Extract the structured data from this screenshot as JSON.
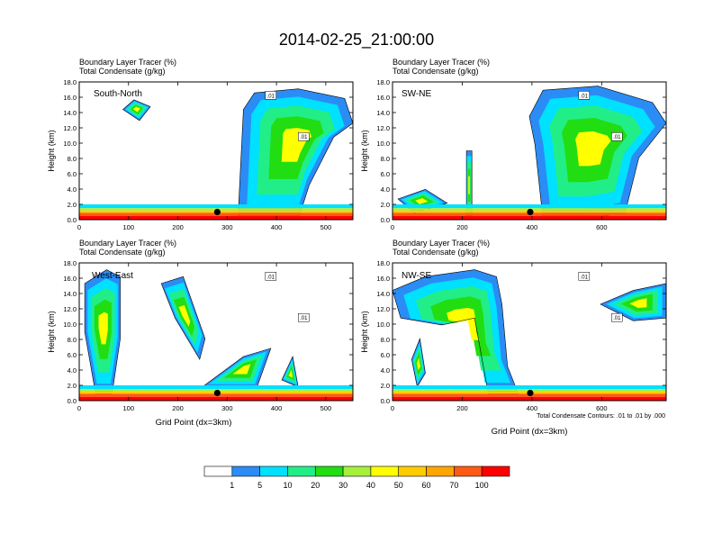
{
  "title": "2014-02-25_21:00:00",
  "panel_header": {
    "line1": "Boundary Layer Tracer    (%)",
    "line2": "Total Condensate    (g/kg)"
  },
  "y_axis_label": "Height (km)",
  "x_axis_label": "Grid Point (dx=3km)",
  "footnote": "Total Condensate Contours: .01 to .01 by .000",
  "contour_label": ".01",
  "chart_data": [
    {
      "type": "heatmap",
      "name": "South-North",
      "x_ticks": [
        0,
        100,
        200,
        300,
        400,
        500
      ],
      "xlim": [
        0,
        555
      ],
      "y_ticks": [
        "0.0",
        "2.0",
        "4.0",
        "6.0",
        "8.0",
        "10.0",
        "12.0",
        "14.0",
        "16.0",
        "18.0"
      ],
      "ylim": [
        0,
        18
      ],
      "marker_x": 280
    },
    {
      "type": "heatmap",
      "name": "SW-NE",
      "x_ticks": [
        0,
        200,
        400,
        600
      ],
      "xlim": [
        0,
        785
      ],
      "y_ticks": [
        "0.0",
        "2.0",
        "4.0",
        "6.0",
        "8.0",
        "10.0",
        "12.0",
        "14.0",
        "16.0",
        "18.0"
      ],
      "ylim": [
        0,
        18
      ],
      "marker_x": 395
    },
    {
      "type": "heatmap",
      "name": "West-East",
      "x_ticks": [
        0,
        100,
        200,
        300,
        400,
        500
      ],
      "xlim": [
        0,
        555
      ],
      "y_ticks": [
        "0.0",
        "2.0",
        "4.0",
        "6.0",
        "8.0",
        "10.0",
        "12.0",
        "14.0",
        "16.0",
        "18.0"
      ],
      "ylim": [
        0,
        18
      ],
      "marker_x": 280
    },
    {
      "type": "heatmap",
      "name": "NW-SE",
      "x_ticks": [
        0,
        200,
        400,
        600
      ],
      "xlim": [
        0,
        785
      ],
      "y_ticks": [
        "0.0",
        "2.0",
        "4.0",
        "6.0",
        "8.0",
        "10.0",
        "12.0",
        "14.0",
        "16.0",
        "18.0"
      ],
      "ylim": [
        0,
        18
      ],
      "marker_x": 395
    }
  ],
  "colorbar": {
    "levels": [
      "1",
      "5",
      "10",
      "20",
      "30",
      "40",
      "50",
      "60",
      "70",
      "100"
    ],
    "colors": [
      "#ffffff",
      "#2b8cf5",
      "#00e0ff",
      "#22ee88",
      "#22dd11",
      "#a6f03a",
      "#ffff00",
      "#ffcc00",
      "#ffa500",
      "#ff5a14",
      "#ff0000"
    ]
  }
}
